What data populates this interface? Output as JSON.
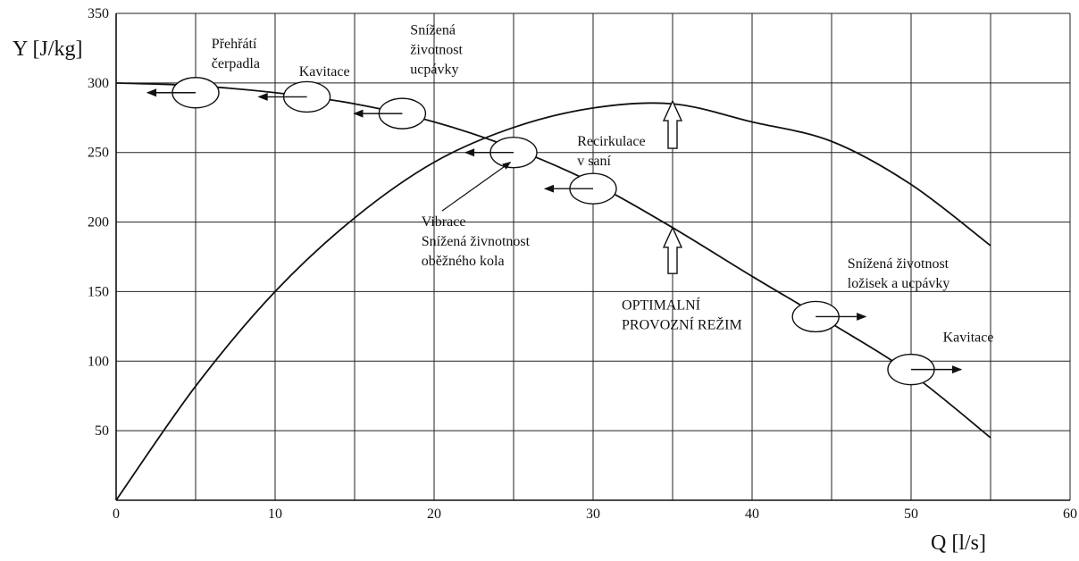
{
  "chart_data": {
    "type": "line",
    "ylabel": "Y [J/kg]",
    "xlabel": "Q [l/s]",
    "xlim": [
      0,
      60
    ],
    "ylim": [
      0,
      350
    ],
    "xticks": [
      0,
      10,
      20,
      30,
      40,
      50,
      60
    ],
    "yticks": [
      50,
      100,
      150,
      200,
      250,
      300,
      350
    ],
    "grid": true,
    "series": [
      {
        "values": [
          [
            0,
            300
          ],
          [
            5,
            298
          ],
          [
            10,
            293
          ],
          [
            15,
            285
          ],
          [
            20,
            272
          ],
          [
            25,
            253
          ],
          [
            30,
            228
          ],
          [
            35,
            196
          ],
          [
            40,
            161
          ],
          [
            45,
            127
          ],
          [
            50,
            91
          ],
          [
            55,
            45
          ]
        ]
      },
      {
        "values": [
          [
            0,
            0
          ],
          [
            5,
            82
          ],
          [
            10,
            150
          ],
          [
            15,
            203
          ],
          [
            20,
            243
          ],
          [
            25,
            268
          ],
          [
            30,
            282
          ],
          [
            35,
            285
          ],
          [
            40,
            272
          ],
          [
            45,
            258
          ],
          [
            50,
            227
          ],
          [
            55,
            183
          ]
        ]
      }
    ],
    "markers": [
      {
        "x": 5,
        "y": 293,
        "dir": "left"
      },
      {
        "x": 12,
        "y": 290,
        "dir": "left"
      },
      {
        "x": 18,
        "y": 278,
        "dir": "left"
      },
      {
        "x": 25,
        "y": 250,
        "dir": "left"
      },
      {
        "x": 30,
        "y": 224,
        "dir": "left"
      },
      {
        "x": 44,
        "y": 132,
        "dir": "right"
      },
      {
        "x": 50,
        "y": 94,
        "dir": "right"
      }
    ],
    "up_arrows": [
      {
        "x": 35,
        "y_from": 163,
        "y_to": 196
      },
      {
        "x": 35,
        "y_from": 253,
        "y_to": 287
      }
    ],
    "annotations": [
      {
        "id": "prehrati",
        "lines": [
          "Přehřátí",
          "čerpadla"
        ],
        "x": 6,
        "y": 325
      },
      {
        "id": "kavitace1",
        "lines": [
          "Kavitace"
        ],
        "x": 11.5,
        "y": 305
      },
      {
        "id": "snizena-upc",
        "lines": [
          "Snížená",
          "životnost",
          "ucpávky"
        ],
        "x": 18.5,
        "y": 335
      },
      {
        "id": "recirkulace",
        "lines": [
          "Recirkulace",
          "v saní"
        ],
        "x": 29,
        "y": 255
      },
      {
        "id": "vibrace",
        "lines": [
          "Vibrace",
          "Snížená živnotnost",
          "oběžného kola"
        ],
        "x": 19.2,
        "y": 197
      },
      {
        "id": "optimalni",
        "lines": [
          "OPTIMALNÍ",
          "PROVOZNÍ REŽIM"
        ],
        "x": 31.8,
        "y": 137
      },
      {
        "id": "lozisek",
        "lines": [
          "Snížená životnost",
          "ložisek a ucpávky"
        ],
        "x": 46,
        "y": 167
      },
      {
        "id": "kavitace2",
        "lines": [
          "Kavitace"
        ],
        "x": 52,
        "y": 114
      }
    ]
  }
}
